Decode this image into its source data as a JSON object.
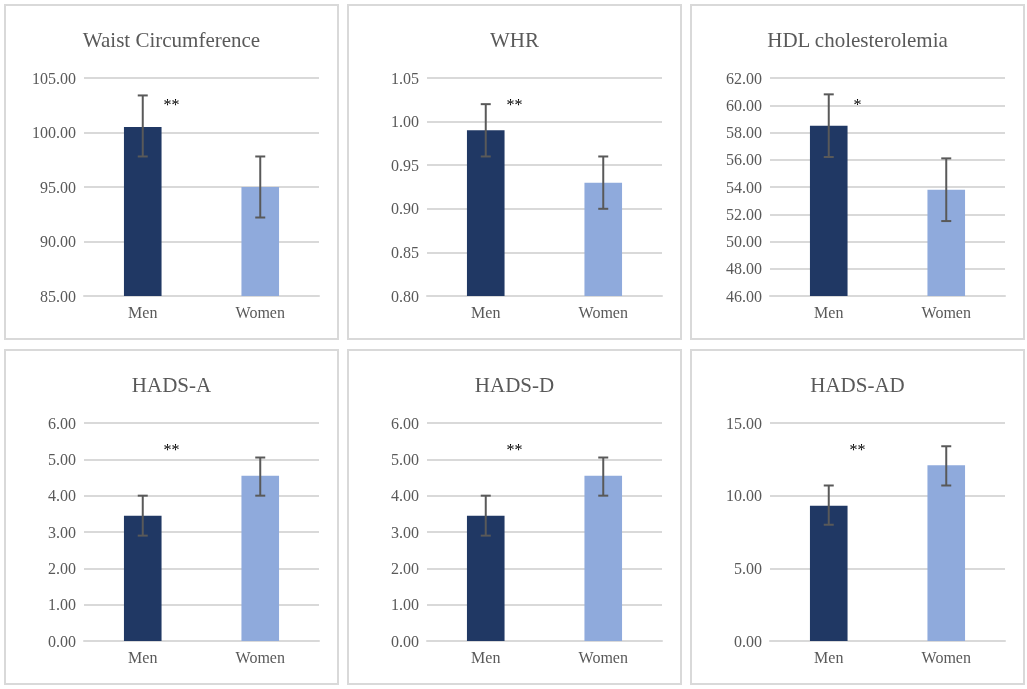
{
  "chart_data": [
    {
      "type": "bar",
      "title": "Waist Circumference",
      "categories": [
        "Men",
        "Women"
      ],
      "values": [
        100.5,
        95.0
      ],
      "colors": [
        "#203864",
        "#8faadc"
      ],
      "errors": [
        [
          97.8,
          103.4
        ],
        [
          92.2,
          97.8
        ]
      ],
      "ylim": [
        85,
        105
      ],
      "yticks": [
        {
          "value": 85,
          "label": "85.00"
        },
        {
          "value": 90,
          "label": "90.00"
        },
        {
          "value": 95,
          "label": "95.00"
        },
        {
          "value": 100,
          "label": "100.00"
        },
        {
          "value": 105,
          "label": "105.00"
        }
      ],
      "grid": "y",
      "annotations": [
        "**"
      ]
    },
    {
      "type": "bar",
      "title": "WHR",
      "categories": [
        "Men",
        "Women"
      ],
      "values": [
        0.99,
        0.93
      ],
      "colors": [
        "#203864",
        "#8faadc"
      ],
      "errors": [
        [
          0.96,
          1.02
        ],
        [
          0.9,
          0.96
        ]
      ],
      "ylim": [
        0.8,
        1.05
      ],
      "yticks": [
        {
          "value": 0.8,
          "label": "0.80"
        },
        0.85,
        {
          "value": 0.9,
          "label": "0.90"
        },
        0.95,
        {
          "value": 1.0,
          "label": "1.00"
        },
        1.05
      ],
      "grid": "y",
      "annotations": [
        "**"
      ]
    },
    {
      "type": "bar",
      "title": "HDL cholesterolemia",
      "categories": [
        "Men",
        "Women"
      ],
      "values": [
        58.5,
        53.8
      ],
      "colors": [
        "#203864",
        "#8faadc"
      ],
      "errors": [
        [
          56.2,
          60.8
        ],
        [
          51.5,
          56.1
        ]
      ],
      "ylim": [
        46,
        62
      ],
      "yticks": [
        {
          "value": 46,
          "label": "46.00"
        },
        {
          "value": 48,
          "label": "48.00"
        },
        {
          "value": 50,
          "label": "50.00"
        },
        {
          "value": 52,
          "label": "52.00"
        },
        {
          "value": 54,
          "label": "54.00"
        },
        {
          "value": 56,
          "label": "56.00"
        },
        {
          "value": 58,
          "label": "58.00"
        },
        {
          "value": 60,
          "label": "60.00"
        },
        {
          "value": 62,
          "label": "62.00"
        }
      ],
      "grid": "y",
      "annotations": [
        "*"
      ]
    },
    {
      "type": "bar",
      "title": "HADS-A",
      "categories": [
        "Men",
        "Women"
      ],
      "values": [
        3.45,
        4.55
      ],
      "colors": [
        "#203864",
        "#8faadc"
      ],
      "errors": [
        [
          2.9,
          4.0
        ],
        [
          4.0,
          5.05
        ]
      ],
      "ylim": [
        0,
        6
      ],
      "yticks": [
        {
          "value": 0,
          "label": "0.00"
        },
        {
          "value": 1,
          "label": "1.00"
        },
        {
          "value": 2,
          "label": "2.00"
        },
        {
          "value": 3,
          "label": "3.00"
        },
        {
          "value": 4,
          "label": "4.00"
        },
        {
          "value": 5,
          "label": "5.00"
        },
        {
          "value": 6,
          "label": "6.00"
        }
      ],
      "grid": "y",
      "annotations": [
        "**"
      ]
    },
    {
      "type": "bar",
      "title": "HADS-D",
      "categories": [
        "Men",
        "Women"
      ],
      "values": [
        3.45,
        4.55
      ],
      "colors": [
        "#203864",
        "#8faadc"
      ],
      "errors": [
        [
          2.9,
          4.0
        ],
        [
          4.0,
          5.05
        ]
      ],
      "ylim": [
        0,
        6
      ],
      "yticks": [
        {
          "value": 0,
          "label": "0.00"
        },
        {
          "value": 1,
          "label": "1.00"
        },
        {
          "value": 2,
          "label": "2.00"
        },
        {
          "value": 3,
          "label": "3.00"
        },
        {
          "value": 4,
          "label": "4.00"
        },
        {
          "value": 5,
          "label": "5.00"
        },
        {
          "value": 6,
          "label": "6.00"
        }
      ],
      "grid": "y",
      "annotations": [
        "**"
      ]
    },
    {
      "type": "bar",
      "title": "HADS-AD",
      "categories": [
        "Men",
        "Women"
      ],
      "values": [
        9.3,
        12.1
      ],
      "colors": [
        "#203864",
        "#8faadc"
      ],
      "errors": [
        [
          8.0,
          10.7
        ],
        [
          10.7,
          13.4
        ]
      ],
      "ylim": [
        0,
        15
      ],
      "yticks": [
        {
          "value": 0,
          "label": "0.00"
        },
        {
          "value": 5,
          "label": "5.00"
        },
        {
          "value": 10,
          "label": "10.00"
        },
        {
          "value": 15,
          "label": "15.00"
        }
      ],
      "grid": "y",
      "annotations": [
        "**"
      ]
    }
  ]
}
